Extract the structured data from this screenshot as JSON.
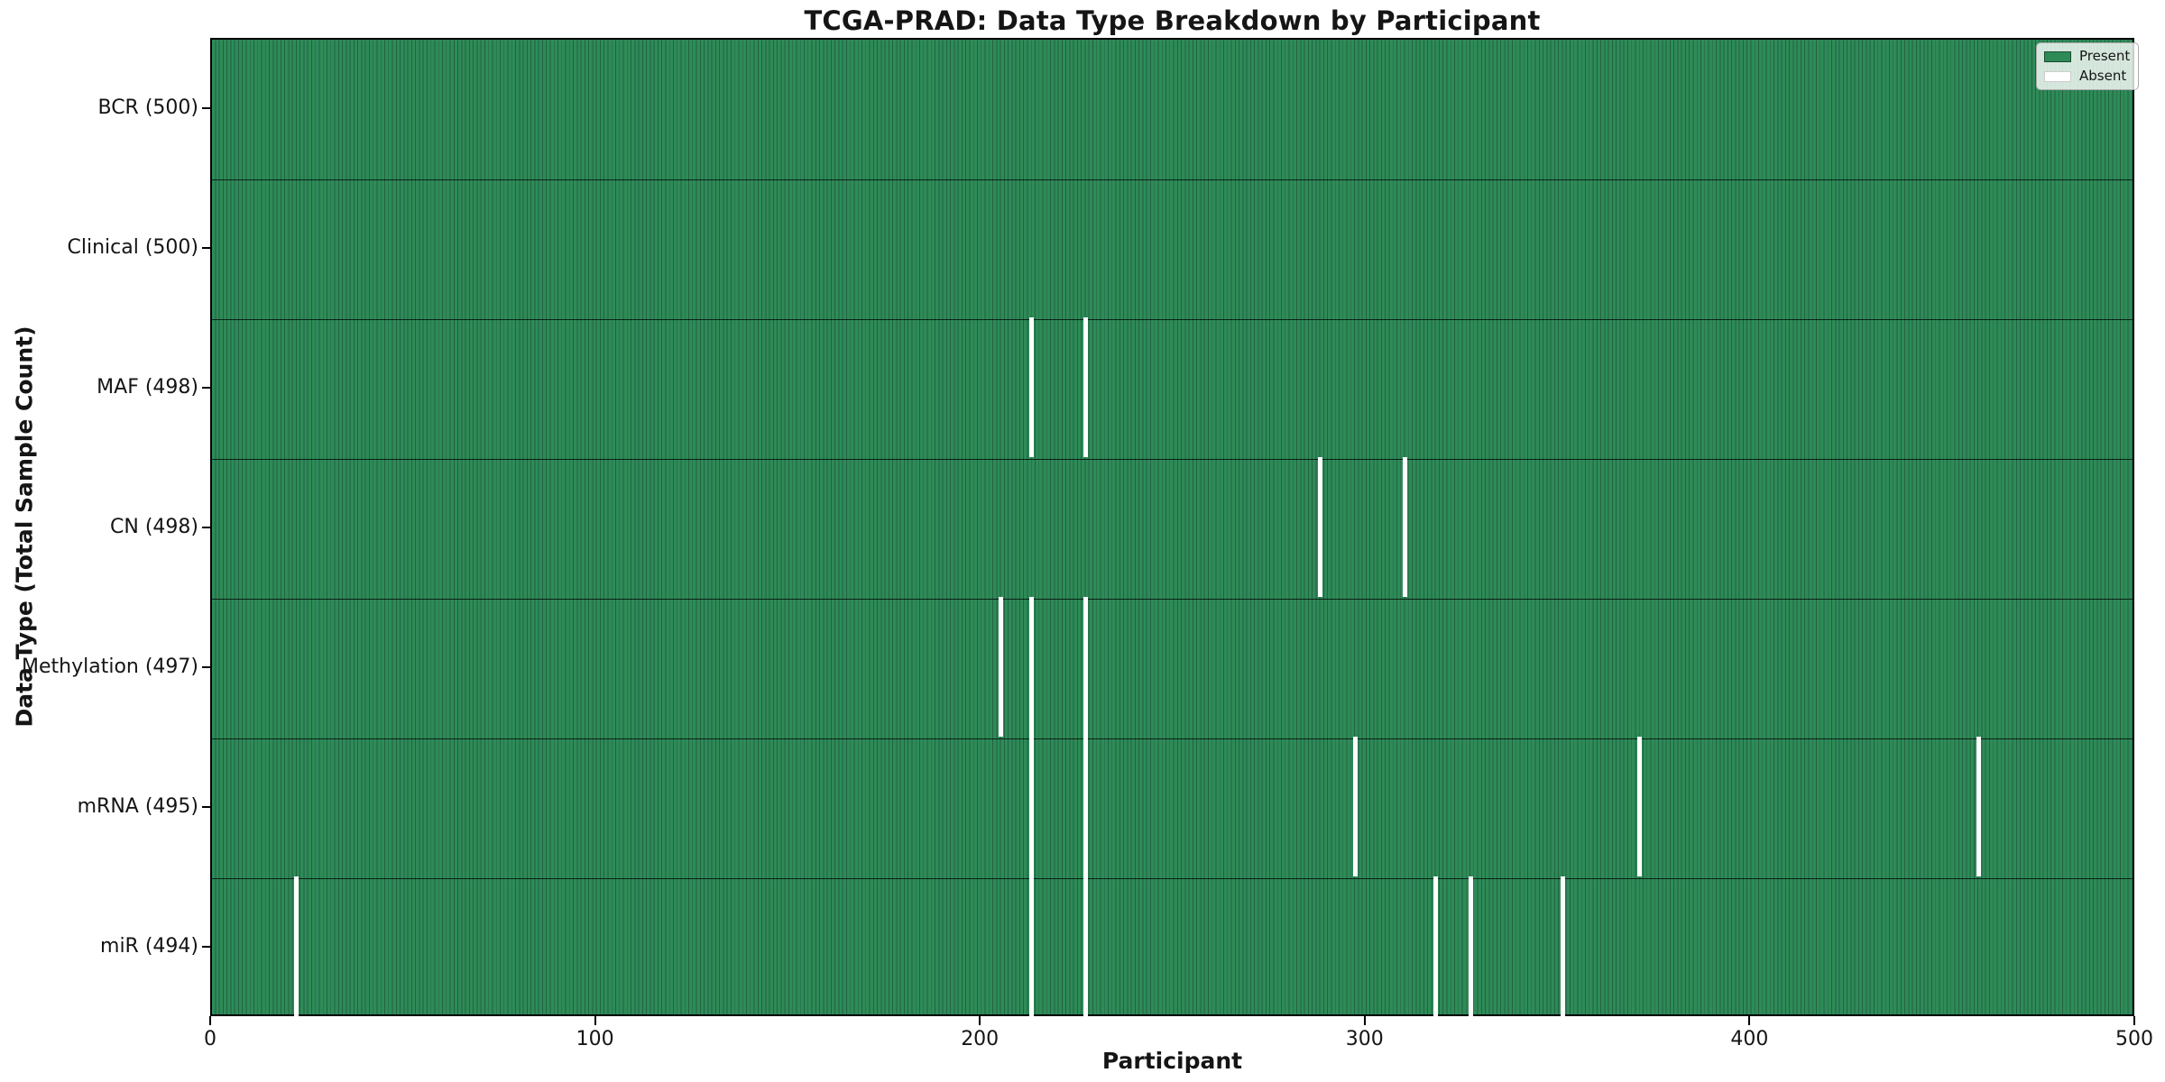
{
  "chart_data": {
    "type": "heatmap",
    "title": "TCGA-PRAD: Data Type Breakdown by Participant",
    "xlabel": "Participant",
    "ylabel": "Data Type (Total Sample Count)",
    "xlim": [
      0,
      500
    ],
    "x_ticks": [
      0,
      100,
      200,
      300,
      400,
      500
    ],
    "n_participants": 500,
    "grid": false,
    "rows": [
      {
        "label": "BCR (500)",
        "total": 500,
        "missing": []
      },
      {
        "label": "Clinical (500)",
        "total": 500,
        "missing": []
      },
      {
        "label": "MAF (498)",
        "total": 498,
        "missing": [
          213,
          227
        ]
      },
      {
        "label": "CN (498)",
        "total": 498,
        "missing": [
          288,
          310
        ]
      },
      {
        "label": "Methylation (497)",
        "total": 497,
        "missing": [
          205,
          213,
          227
        ]
      },
      {
        "label": "mRNA (495)",
        "total": 495,
        "missing": [
          213,
          227,
          297,
          371,
          459
        ]
      },
      {
        "label": "miR (494)",
        "total": 494,
        "missing": [
          22,
          213,
          227,
          318,
          327,
          351
        ]
      }
    ],
    "legend": {
      "position": "upper right",
      "entries": [
        {
          "label": "Present",
          "color": "#2e8b57"
        },
        {
          "label": "Absent",
          "color": "#ffffff"
        }
      ]
    },
    "colors": {
      "present_fill": "#2e8b57",
      "bar_edge": "#226244",
      "absent_fill": "#ffffff",
      "row_separator": "rgba(0,0,0,0.75)",
      "spine": "#000000"
    }
  }
}
